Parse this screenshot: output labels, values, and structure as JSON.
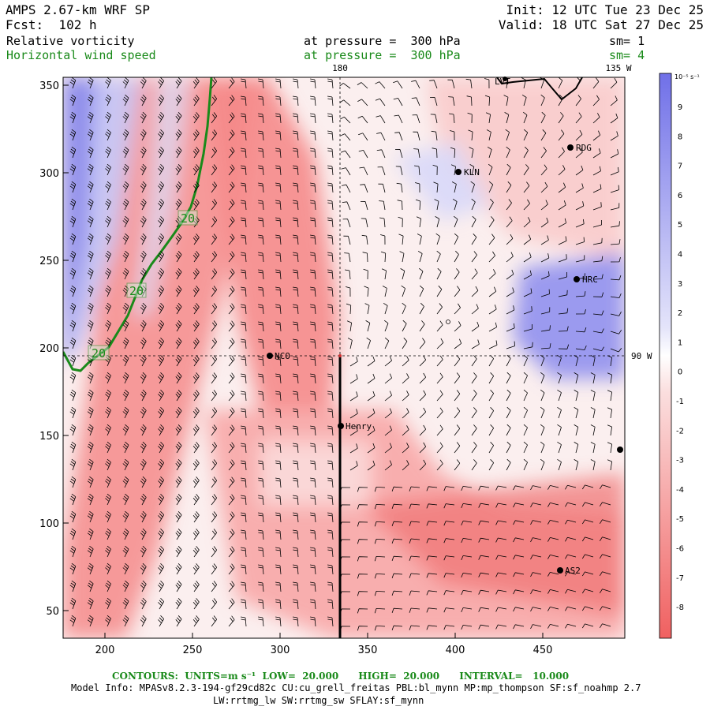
{
  "header": {
    "model": "AMPS 2.67-km WRF SP",
    "forecast": "Fcst:  102 h",
    "init": "Init: 12 UTC Tue 23 Dec 25",
    "valid": "Valid: 18 UTC Sat 27 Dec 25"
  },
  "fields": [
    {
      "name": "Relative vorticity",
      "level": "at pressure =  300 hPa",
      "smooth": "sm= 1",
      "color": "#000000"
    },
    {
      "name": "Horizontal wind speed",
      "level": "at pressure =  300 hPa",
      "smooth": "sm= 4",
      "color": "#1a8a1a"
    }
  ],
  "colorbar": {
    "unit": "10⁻⁵ s⁻¹",
    "labels": [
      "9",
      "8",
      "7",
      "6",
      "5",
      "4",
      "3",
      "2",
      "1",
      "0",
      "-1",
      "-2",
      "-3",
      "-4",
      "-5",
      "-6",
      "-7",
      "-8"
    ]
  },
  "axes": {
    "x_ticks": [
      "200",
      "250",
      "300",
      "350",
      "400",
      "450"
    ],
    "y_ticks": [
      "350",
      "300",
      "250",
      "200",
      "150",
      "100",
      "50"
    ]
  },
  "geo_labels": {
    "lon_180": "180",
    "lon_135w": "135 W",
    "lon_90w": "90 W"
  },
  "stations": [
    {
      "name": "RDG"
    },
    {
      "name": "KLN"
    },
    {
      "name": "HRC"
    },
    {
      "name": "NCO"
    },
    {
      "name": "Henry"
    },
    {
      "name": "AS2"
    },
    {
      "name": "LVT"
    }
  ],
  "contour_labels": [
    "20",
    "20",
    "20"
  ],
  "footer": {
    "contours": "CONTOURS:  UNITS=m s⁻¹  LOW=  20.000      HIGH=  20.000      INTERVAL=   10.000",
    "model_info": "Model Info: MPASv8.2.3-194-gf29cd82c CU:cu_grell_freitas PBL:bl_mynn MP:mp_thompson SF:sf_noahmp 2.7",
    "model_info2": "LW:rrtmg_lw SW:rrtmg_sw SFLAY:sf_mynn"
  },
  "colors": {
    "positive": "#7070e8",
    "negative": "#f06060",
    "contour": "#1a8a1a"
  }
}
